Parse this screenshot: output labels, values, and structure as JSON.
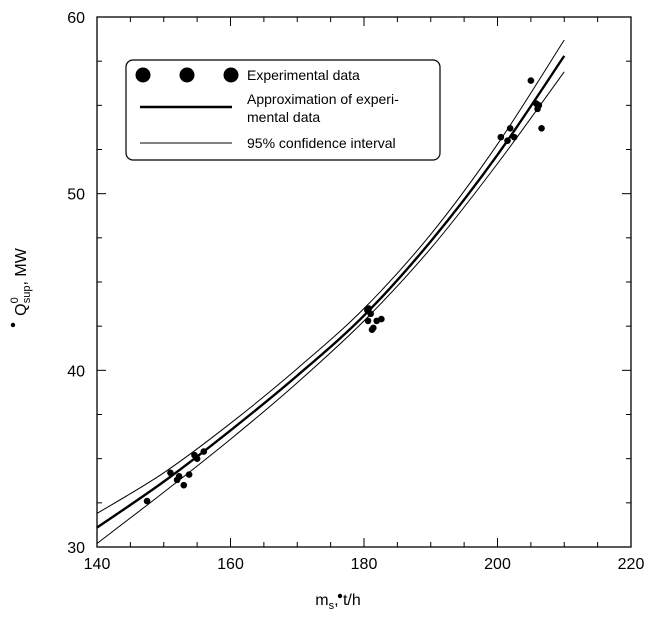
{
  "chart_data": {
    "type": "scatter",
    "xlabel": "m",
    "xlabel_sub": "s",
    "xlabel_unit": ", t/h",
    "ylabel": "Q",
    "ylabel_sup": "0",
    "ylabel_sub": "sup",
    "ylabel_unit": ", MW",
    "xlim": [
      140,
      220
    ],
    "ylim": [
      30,
      60
    ],
    "xticks": [
      140,
      160,
      180,
      200,
      220
    ],
    "yticks": [
      30,
      40,
      50,
      60
    ],
    "grid": false,
    "legend_position": "top-left",
    "legend": {
      "experimental": "Experimental data",
      "approx_line1": "Approximation of experi-",
      "approx_line2": "mental data",
      "confidence": "95% confidence interval"
    },
    "series": [
      {
        "name": "Experimental data",
        "kind": "points",
        "points": [
          [
            147.5,
            32.6
          ],
          [
            151,
            34.2
          ],
          [
            152,
            33.8
          ],
          [
            152.3,
            34.0
          ],
          [
            153,
            33.5
          ],
          [
            153.8,
            34.1
          ],
          [
            154.6,
            35.2
          ],
          [
            155,
            35.0
          ],
          [
            156,
            35.4
          ],
          [
            180.5,
            43.4
          ],
          [
            180.7,
            43.5
          ],
          [
            180.6,
            42.8
          ],
          [
            181,
            43.2
          ],
          [
            181.2,
            42.3
          ],
          [
            181.4,
            42.4
          ],
          [
            181.9,
            42.8
          ],
          [
            182.6,
            42.9
          ],
          [
            200.5,
            53.2
          ],
          [
            201.5,
            53.0
          ],
          [
            201.9,
            53.7
          ],
          [
            202.5,
            53.2
          ],
          [
            205,
            56.4
          ],
          [
            205.8,
            55.1
          ],
          [
            206,
            54.8
          ],
          [
            206.2,
            55.0
          ],
          [
            206.6,
            53.7
          ]
        ]
      },
      {
        "name": "Approximation of experimental data",
        "kind": "line",
        "x": [
          140,
          150,
          160,
          170,
          180,
          190,
          200,
          210
        ],
        "y": [
          31.1,
          33.7,
          36.6,
          39.7,
          43.1,
          47.3,
          52.2,
          57.8
        ]
      },
      {
        "name": "95% confidence interval (upper)",
        "kind": "line",
        "x": [
          140,
          150,
          160,
          170,
          180,
          190,
          200,
          210
        ],
        "y": [
          31.9,
          34.2,
          37.0,
          40.1,
          43.5,
          47.7,
          52.8,
          58.7
        ]
      },
      {
        "name": "95% confidence interval (lower)",
        "kind": "line",
        "x": [
          140,
          150,
          160,
          170,
          180,
          190,
          200,
          210
        ],
        "y": [
          30.2,
          33.1,
          36.1,
          39.3,
          42.8,
          46.9,
          51.7,
          56.9
        ]
      }
    ]
  }
}
